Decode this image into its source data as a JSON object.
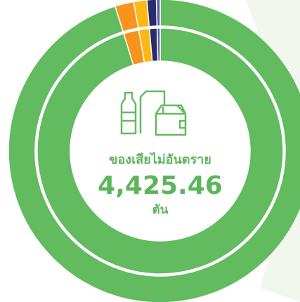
{
  "chart_data": {
    "type": "donut",
    "categories": [
      null,
      null,
      null,
      null,
      null
    ],
    "series": [
      {
        "values": [
          95.2,
          2,
          1.4,
          1,
          0.4
        ]
      },
      {
        "values": [
          95.2,
          2,
          1.4,
          1,
          0.4
        ]
      }
    ],
    "colors": [
      "#62bb5f",
      "#f7941d",
      "#fdb913",
      "#2b2a6b",
      "#5b5fa8"
    ],
    "annotations": [
      "ของเสียไม่อันตราย",
      "4,425.46",
      "ตัน"
    ]
  }
}
